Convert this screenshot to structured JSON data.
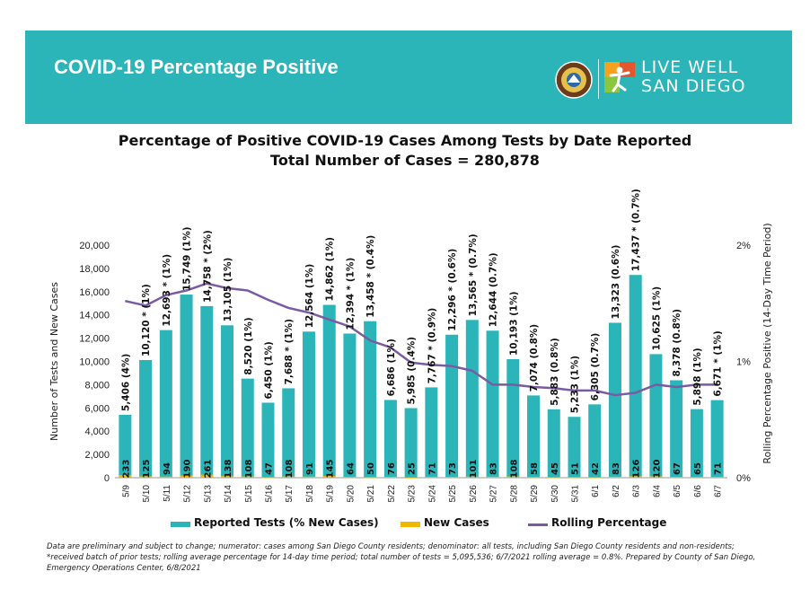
{
  "header": {
    "title": "COVID-19 Percentage Positive",
    "logo_line1": "LIVE WELL",
    "logo_line2": "SAN DIEGO",
    "colors": {
      "background": "#2bb5b8",
      "text": "#ffffff"
    }
  },
  "legend": {
    "items": [
      {
        "label": "Reported Tests (% New Cases)",
        "color": "#2bb5b8"
      },
      {
        "label": "New Cases",
        "color": "#f2b800"
      },
      {
        "label": "Rolling Percentage",
        "color": "#7a5ba1"
      }
    ]
  },
  "footnote": "Data are preliminary and subject to change; numerator: cases among San Diego County residents; denominator: all tests, including San Diego County residents and non-residents; *received batch of prior tests; rolling average percentage for 14-day time period; total number of tests = 5,095,536; 6/7/2021 rolling average = 0.8%.  Prepared by County of San Diego, Emergency Operations Center, 6/8/2021",
  "chart_data": {
    "type": "bar",
    "title": "Percentage of Positive COVID-19 Cases Among Tests by Date Reported",
    "subtitle": "Total Number of Cases = 280,878",
    "ylabel": "Number of Tests and New Cases",
    "y2label": "Rolling Percentage Positive (14-Day Time Period)",
    "ylim": [
      0,
      20000
    ],
    "y_ticks": [
      "0",
      "2,000",
      "4,000",
      "6,000",
      "8,000",
      "10,000",
      "12,000",
      "14,000",
      "16,000",
      "18,000",
      "20,000"
    ],
    "y2lim": [
      0,
      2
    ],
    "y2_ticks": [
      "0%",
      "1%",
      "2%"
    ],
    "categories": [
      "5/9",
      "5/10",
      "5/11",
      "5/12",
      "5/13",
      "5/14",
      "5/15",
      "5/16",
      "5/17",
      "5/18",
      "5/19",
      "5/20",
      "5/21",
      "5/22",
      "5/23",
      "5/24",
      "5/25",
      "5/26",
      "5/27",
      "5/28",
      "5/29",
      "5/30",
      "5/31",
      "6/1",
      "6/2",
      "6/3",
      "6/4",
      "6/5",
      "6/6",
      "6/7"
    ],
    "series": [
      {
        "name": "Reported Tests (% New Cases)",
        "values": [
          5406,
          10120,
          12693,
          15749,
          14758,
          13105,
          8520,
          6450,
          7688,
          12564,
          14862,
          12394,
          13458,
          6686,
          5985,
          7767,
          12296,
          13565,
          12644,
          10193,
          7074,
          5883,
          5233,
          6305,
          13323,
          17437,
          10625,
          8378,
          5898,
          6671
        ],
        "labels": [
          "5,406 (4%)",
          "10,120 * (1%)",
          "12,693 * (1%)",
          "15,749 (1%)",
          "14,758 * (2%)",
          "13,105 (1%)",
          "8,520 (1%)",
          "6,450 (1%)",
          "7,688 * (1%)",
          "12,564 (1%)",
          "14,862 (1%)",
          "12,394 * (1%)",
          "13,458 * (0.4%)",
          "6,686 (1%)",
          "5,985 (0.4%)",
          "7,767 * (0.9%)",
          "12,296 * (0.6%)",
          "13,565 * (0.7%)",
          "12,644 (0.7%)",
          "10,193 (1%)",
          "7,074 (0.8%)",
          "5,883 (0.8%)",
          "5,233 (1%)",
          "6,305 (0.7%)",
          "13,323 (0.6%)",
          "17,437 * (0.7%)",
          "10,625 (1%)",
          "8,378 (0.8%)",
          "5,898 (1%)",
          "6,671 * (1%)"
        ]
      },
      {
        "name": "New Cases",
        "values": [
          233,
          125,
          94,
          190,
          261,
          138,
          108,
          47,
          108,
          91,
          145,
          64,
          50,
          76,
          25,
          71,
          73,
          101,
          83,
          108,
          58,
          45,
          51,
          42,
          83,
          126,
          120,
          67,
          65,
          71
        ]
      },
      {
        "name": "Rolling Percentage",
        "values": [
          1.52,
          1.48,
          1.57,
          1.61,
          1.67,
          1.63,
          1.61,
          1.53,
          1.46,
          1.42,
          1.36,
          1.3,
          1.18,
          1.12,
          0.99,
          0.97,
          0.96,
          0.92,
          0.8,
          0.8,
          0.78,
          0.77,
          0.75,
          0.75,
          0.71,
          0.73,
          0.8,
          0.78,
          0.8,
          0.8
        ]
      }
    ],
    "grid": false
  }
}
